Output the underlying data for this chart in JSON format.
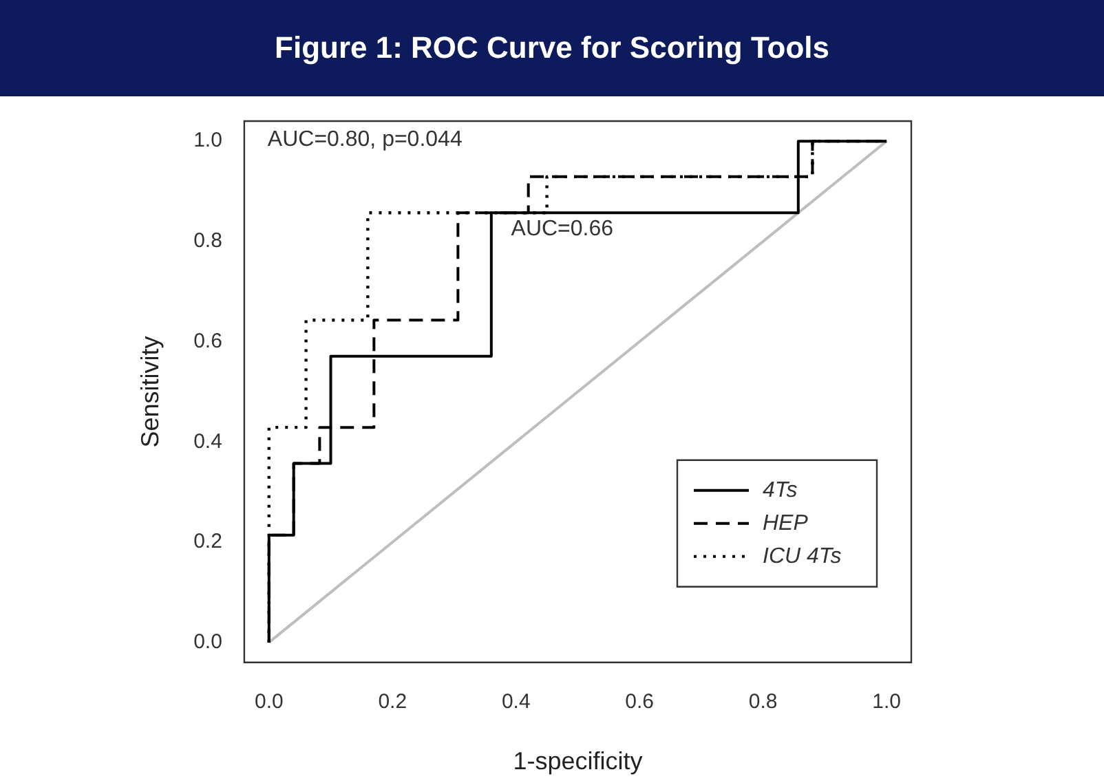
{
  "chart_data": {
    "type": "line",
    "title": "Figure 1: ROC Curve for Scoring Tools",
    "xlabel": "1-specificity",
    "ylabel": "Sensitivity",
    "xlim": [
      -0.04,
      1.04
    ],
    "ylim": [
      -0.04,
      1.04
    ],
    "xticks": [
      {
        "value": 0,
        "label": "0.0"
      },
      0.2,
      0.4,
      0.6,
      0.8,
      {
        "value": 1,
        "label": "1.0"
      }
    ],
    "yticks": [
      {
        "value": 0,
        "label": "0.0"
      },
      0.2,
      0.4,
      0.6,
      0.8,
      {
        "value": 1,
        "label": "1.0"
      }
    ],
    "series": [
      {
        "name": "4Ts",
        "color": "#000000",
        "line_style": "solid",
        "x": [
          0,
          0,
          0.04,
          0.04,
          0.1,
          0.1,
          0.36,
          0.36,
          0.857,
          0.857,
          1
        ],
        "values": [
          0,
          0.214,
          0.214,
          0.357,
          0.357,
          0.571,
          0.571,
          0.857,
          0.857,
          1,
          1
        ]
      },
      {
        "name": "HEP",
        "color": "#000000",
        "line_style": "dashed",
        "x": [
          0,
          0,
          0.04,
          0.04,
          0.082,
          0.082,
          0.17,
          0.17,
          0.306,
          0.306,
          0.42,
          0.42,
          0.88,
          0.88,
          1
        ],
        "values": [
          0,
          0.214,
          0.214,
          0.357,
          0.357,
          0.429,
          0.429,
          0.643,
          0.643,
          0.857,
          0.857,
          0.929,
          0.929,
          1,
          1
        ]
      },
      {
        "name": "ICU 4Ts",
        "color": "#000000",
        "line_style": "dotted",
        "x": [
          0,
          0,
          0.06,
          0.06,
          0.16,
          0.16,
          0.45,
          0.45,
          0.88,
          0.88,
          1
        ],
        "values": [
          0,
          0.429,
          0.429,
          0.643,
          0.643,
          0.857,
          0.857,
          0.929,
          0.929,
          1,
          1
        ]
      },
      {
        "color": "#bebebe",
        "line_style": "solid",
        "x": [
          0,
          1
        ],
        "values": [
          0,
          1
        ]
      }
    ],
    "annotations": [
      "AUC=0.80, p=0.044",
      "AUC=0.66"
    ],
    "legend": "bottom right",
    "marker": "none",
    "grid": false
  }
}
